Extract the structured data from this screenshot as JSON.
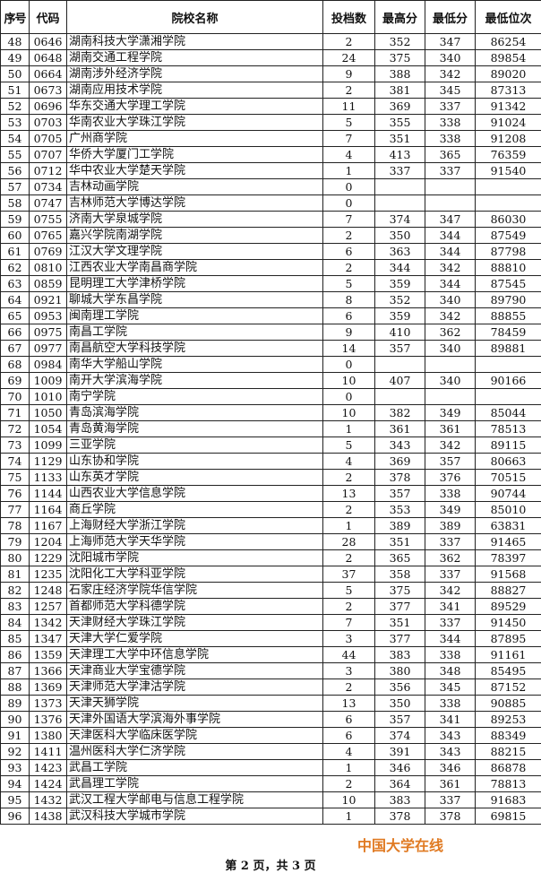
{
  "headers": [
    "序号",
    "代码",
    "院校名称",
    "投档数",
    "最高分",
    "最低分",
    "最低位次"
  ],
  "rows": [
    [
      "48",
      "0646",
      "湖南科技大学潇湘学院",
      "2",
      "352",
      "347",
      "86254"
    ],
    [
      "49",
      "0648",
      "湖南交通工程学院",
      "24",
      "375",
      "340",
      "89854"
    ],
    [
      "50",
      "0664",
      "湖南涉外经济学院",
      "9",
      "388",
      "342",
      "89020"
    ],
    [
      "51",
      "0673",
      "湖南应用技术学院",
      "2",
      "381",
      "345",
      "87313"
    ],
    [
      "52",
      "0696",
      "华东交通大学理工学院",
      "11",
      "369",
      "337",
      "91342"
    ],
    [
      "53",
      "0703",
      "华南农业大学珠江学院",
      "5",
      "355",
      "338",
      "91024"
    ],
    [
      "54",
      "0705",
      "广州商学院",
      "7",
      "351",
      "338",
      "91208"
    ],
    [
      "55",
      "0707",
      "华侨大学厦门工学院",
      "4",
      "413",
      "365",
      "76359"
    ],
    [
      "56",
      "0712",
      "华中农业大学楚天学院",
      "1",
      "337",
      "337",
      "91540"
    ],
    [
      "57",
      "0734",
      "吉林动画学院",
      "0",
      "",
      "",
      ""
    ],
    [
      "58",
      "0747",
      "吉林师范大学博达学院",
      "0",
      "",
      "",
      ""
    ],
    [
      "59",
      "0755",
      "济南大学泉城学院",
      "7",
      "374",
      "347",
      "86030"
    ],
    [
      "60",
      "0765",
      "嘉兴学院南湖学院",
      "2",
      "350",
      "344",
      "87549"
    ],
    [
      "61",
      "0769",
      "江汉大学文理学院",
      "6",
      "363",
      "344",
      "87798"
    ],
    [
      "62",
      "0810",
      "江西农业大学南昌商学院",
      "2",
      "344",
      "342",
      "88810"
    ],
    [
      "63",
      "0859",
      "昆明理工大学津桥学院",
      "5",
      "359",
      "344",
      "87545"
    ],
    [
      "64",
      "0921",
      "聊城大学东昌学院",
      "8",
      "352",
      "340",
      "89790"
    ],
    [
      "65",
      "0953",
      "闽南理工学院",
      "6",
      "359",
      "342",
      "88855"
    ],
    [
      "66",
      "0975",
      "南昌工学院",
      "9",
      "410",
      "362",
      "78459"
    ],
    [
      "67",
      "0977",
      "南昌航空大学科技学院",
      "14",
      "357",
      "340",
      "89881"
    ],
    [
      "68",
      "0984",
      "南华大学船山学院",
      "0",
      "",
      "",
      ""
    ],
    [
      "69",
      "1009",
      "南开大学滨海学院",
      "10",
      "407",
      "340",
      "90166"
    ],
    [
      "70",
      "1010",
      "南宁学院",
      "0",
      "",
      "",
      ""
    ],
    [
      "71",
      "1050",
      "青岛滨海学院",
      "10",
      "382",
      "349",
      "85044"
    ],
    [
      "72",
      "1054",
      "青岛黄海学院",
      "1",
      "361",
      "361",
      "78513"
    ],
    [
      "73",
      "1099",
      "三亚学院",
      "5",
      "343",
      "342",
      "89115"
    ],
    [
      "74",
      "1129",
      "山东协和学院",
      "4",
      "369",
      "357",
      "80663"
    ],
    [
      "75",
      "1133",
      "山东英才学院",
      "2",
      "378",
      "376",
      "70515"
    ],
    [
      "76",
      "1144",
      "山西农业大学信息学院",
      "13",
      "357",
      "338",
      "90744"
    ],
    [
      "77",
      "1164",
      "商丘学院",
      "2",
      "353",
      "349",
      "85010"
    ],
    [
      "78",
      "1167",
      "上海财经大学浙江学院",
      "1",
      "389",
      "389",
      "63831"
    ],
    [
      "79",
      "1204",
      "上海师范大学天华学院",
      "28",
      "351",
      "337",
      "91465"
    ],
    [
      "80",
      "1229",
      "沈阳城市学院",
      "2",
      "365",
      "362",
      "78397"
    ],
    [
      "81",
      "1235",
      "沈阳化工大学科亚学院",
      "37",
      "358",
      "337",
      "91568"
    ],
    [
      "82",
      "1248",
      "石家庄经济学院华信学院",
      "5",
      "375",
      "342",
      "88827"
    ],
    [
      "83",
      "1257",
      "首都师范大学科德学院",
      "2",
      "377",
      "341",
      "89529"
    ],
    [
      "84",
      "1342",
      "天津财经大学珠江学院",
      "7",
      "351",
      "337",
      "91450"
    ],
    [
      "85",
      "1347",
      "天津大学仁爱学院",
      "3",
      "377",
      "344",
      "87895"
    ],
    [
      "86",
      "1359",
      "天津理工大学中环信息学院",
      "44",
      "383",
      "338",
      "91161"
    ],
    [
      "87",
      "1366",
      "天津商业大学宝德学院",
      "3",
      "380",
      "348",
      "85495"
    ],
    [
      "88",
      "1369",
      "天津师范大学津沽学院",
      "2",
      "356",
      "345",
      "87152"
    ],
    [
      "89",
      "1373",
      "天津天狮学院",
      "13",
      "350",
      "338",
      "90885"
    ],
    [
      "90",
      "1376",
      "天津外国语大学滨海外事学院",
      "6",
      "357",
      "341",
      "89253"
    ],
    [
      "91",
      "1380",
      "天津医科大学临床医学院",
      "6",
      "374",
      "343",
      "88349"
    ],
    [
      "92",
      "1411",
      "温州医科大学仁济学院",
      "4",
      "391",
      "343",
      "88215"
    ],
    [
      "93",
      "1423",
      "武昌工学院",
      "1",
      "346",
      "346",
      "86878"
    ],
    [
      "94",
      "1424",
      "武昌理工学院",
      "2",
      "364",
      "361",
      "78813"
    ],
    [
      "95",
      "1432",
      "武汉工程大学邮电与信息工程学院",
      "10",
      "383",
      "337",
      "91683"
    ],
    [
      "96",
      "1438",
      "武汉科技大学城市学院",
      "1",
      "378",
      "378",
      "69815"
    ]
  ],
  "footer": "第 2 页，共 3 页",
  "watermark": "中国大学在线",
  "watermark_color": "#e07a22"
}
